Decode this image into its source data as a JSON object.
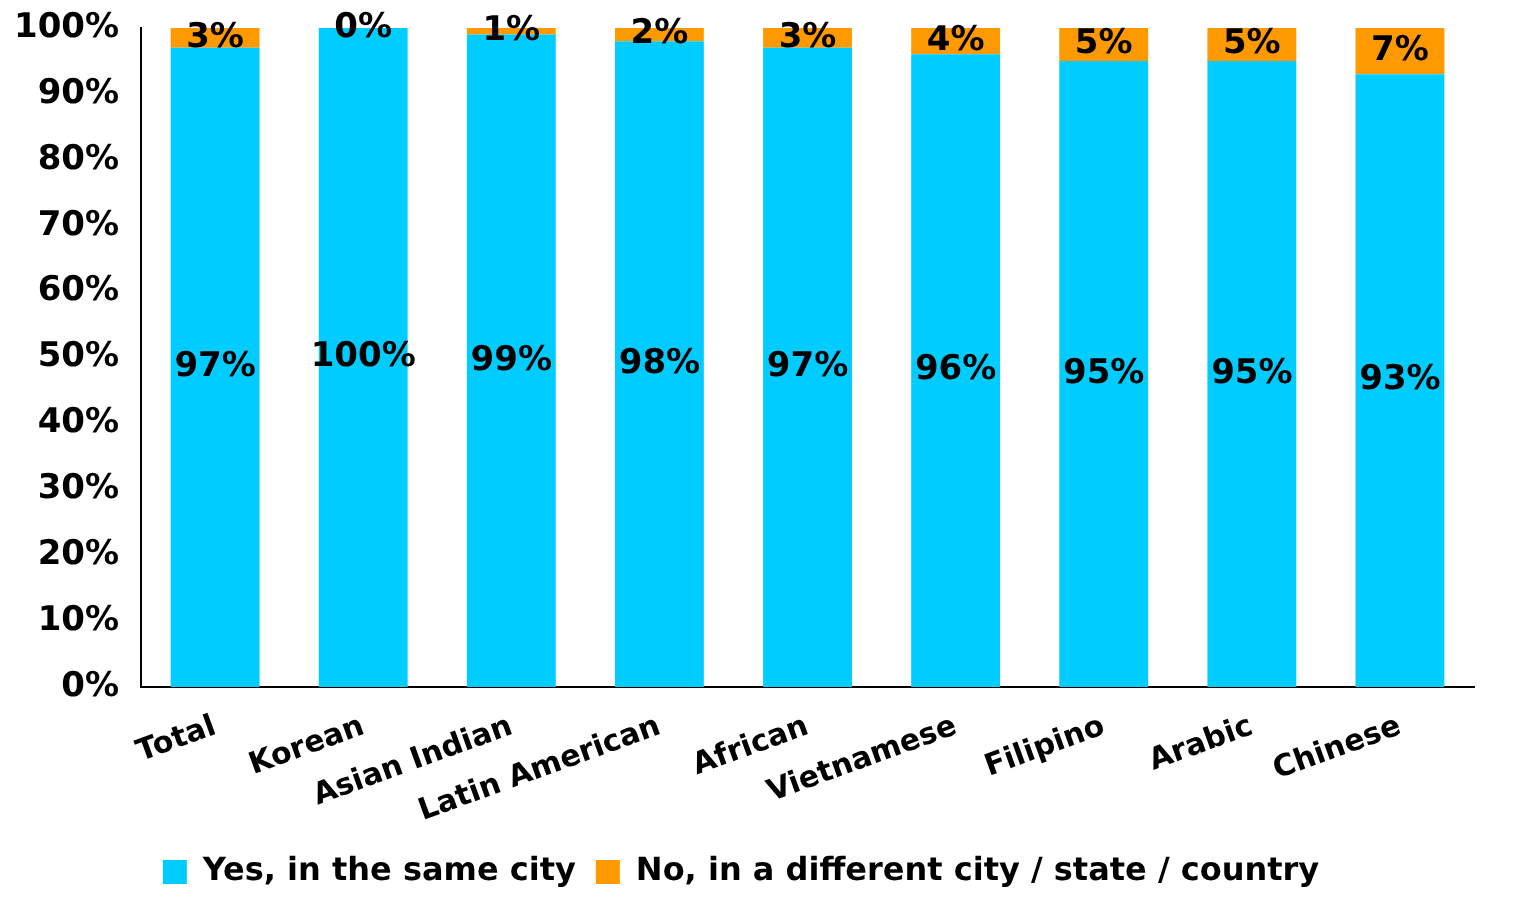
{
  "chart_data": {
    "type": "bar",
    "stacked": true,
    "categories": [
      "Total",
      "Korean",
      "Asian Indian",
      "Latin American",
      "African",
      "Vietnamese",
      "Filipino",
      "Arabic",
      "Chinese"
    ],
    "series": [
      {
        "name": "Yes, in the same city",
        "color": "#00ccff",
        "values": [
          97,
          100,
          99,
          98,
          97,
          96,
          95,
          95,
          93
        ],
        "value_labels": [
          "97%",
          "100%",
          "99%",
          "98%",
          "97%",
          "96%",
          "95%",
          "95%",
          "93%"
        ]
      },
      {
        "name": "No, in a different city / state / country",
        "color": "#ff9900",
        "values": [
          3,
          0,
          1,
          2,
          3,
          4,
          5,
          5,
          7
        ],
        "value_labels": [
          "3%",
          "0%",
          "1%",
          "2%",
          "3%",
          "4%",
          "5%",
          "5%",
          "7%"
        ]
      }
    ],
    "ylim": [
      0,
      100
    ],
    "yticks": [
      {
        "value": 0,
        "label": "0%"
      },
      {
        "value": 10,
        "label": "10%"
      },
      {
        "value": 20,
        "label": "20%"
      },
      {
        "value": 30,
        "label": "30%"
      },
      {
        "value": 40,
        "label": "40%"
      },
      {
        "value": 50,
        "label": "50%"
      },
      {
        "value": 60,
        "label": "60%"
      },
      {
        "value": 70,
        "label": "70%"
      },
      {
        "value": 80,
        "label": "80%"
      },
      {
        "value": 90,
        "label": "90%"
      },
      {
        "value": 100,
        "label": "100%"
      }
    ],
    "grid": false,
    "legend": "bottom"
  }
}
